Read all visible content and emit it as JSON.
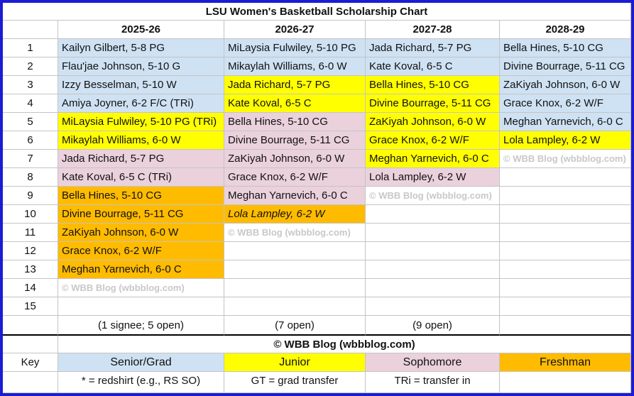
{
  "title": "LSU Women's Basketball Scholarship Chart",
  "table": {
    "columns": [
      "2025-26",
      "2026-27",
      "2027-28",
      "2028-29"
    ],
    "rows": [
      {
        "number": 1,
        "cells": [
          {
            "text": "Kailyn Gilbert, 5-8 PG",
            "color": "#cfe2f3"
          },
          {
            "text": "MiLaysia Fulwiley, 5-10 PG",
            "color": "#cfe2f3"
          },
          {
            "text": "Jada Richard, 5-7 PG",
            "color": "#cfe2f3"
          },
          {
            "text": "Bella Hines, 5-10 CG",
            "color": "#cfe2f3"
          }
        ]
      },
      {
        "number": 2,
        "cells": [
          {
            "text": "Flau'jae Johnson, 5-10 G",
            "color": "#cfe2f3"
          },
          {
            "text": "Mikaylah Williams, 6-0 W",
            "color": "#cfe2f3"
          },
          {
            "text": "Kate Koval, 6-5 C",
            "color": "#cfe2f3"
          },
          {
            "text": "Divine Bourrage, 5-11 CG",
            "color": "#cfe2f3"
          }
        ]
      },
      {
        "number": 3,
        "cells": [
          {
            "text": "Izzy Besselman, 5-10 W",
            "color": "#cfe2f3"
          },
          {
            "text": "Jada Richard, 5-7 PG",
            "color": "#ffff00"
          },
          {
            "text": "Bella Hines, 5-10 CG",
            "color": "#ffff00"
          },
          {
            "text": "ZaKiyah Johnson, 6-0 W",
            "color": "#cfe2f3"
          }
        ]
      },
      {
        "number": 4,
        "cells": [
          {
            "text": "Amiya Joyner, 6-2 F/C (TRi)",
            "color": "#cfe2f3"
          },
          {
            "text": "Kate Koval, 6-5 C",
            "color": "#ffff00"
          },
          {
            "text": "Divine Bourrage, 5-11 CG",
            "color": "#ffff00"
          },
          {
            "text": "Grace Knox, 6-2 W/F",
            "color": "#cfe2f3"
          }
        ]
      },
      {
        "number": 5,
        "cells": [
          {
            "text": "MiLaysia Fulwiley, 5-10 PG (TRi)",
            "color": "#ffff00"
          },
          {
            "text": "Bella Hines, 5-10 CG",
            "color": "#ead1dc"
          },
          {
            "text": "ZaKiyah Johnson, 6-0 W",
            "color": "#ffff00"
          },
          {
            "text": "Meghan Yarnevich, 6-0 C",
            "color": "#cfe2f3"
          }
        ]
      },
      {
        "number": 6,
        "cells": [
          {
            "text": "Mikaylah Williams, 6-0 W",
            "color": "#ffff00"
          },
          {
            "text": "Divine Bourrage, 5-11 CG",
            "color": "#ead1dc"
          },
          {
            "text": "Grace Knox, 6-2 W/F",
            "color": "#ffff00"
          },
          {
            "text": "Lola Lampley, 6-2 W",
            "color": "#ffff00"
          }
        ]
      },
      {
        "number": 7,
        "cells": [
          {
            "text": "Jada Richard, 5-7 PG",
            "color": "#ead1dc"
          },
          {
            "text": "ZaKiyah Johnson, 6-0 W",
            "color": "#ead1dc"
          },
          {
            "text": "Meghan Yarnevich, 6-0 C",
            "color": "#ffff00"
          },
          {
            "text": "© WBB Blog (wbbblog.com)",
            "watermark": true
          }
        ]
      },
      {
        "number": 8,
        "cells": [
          {
            "text": "Kate Koval, 6-5 C (TRi)",
            "color": "#ead1dc"
          },
          {
            "text": "Grace Knox, 6-2 W/F",
            "color": "#ead1dc"
          },
          {
            "text": "Lola Lampley, 6-2 W",
            "color": "#ead1dc"
          },
          null
        ]
      },
      {
        "number": 9,
        "cells": [
          {
            "text": "Bella Hines, 5-10 CG",
            "color": "#ffbb00"
          },
          {
            "text": "Meghan Yarnevich, 6-0 C",
            "color": "#ead1dc"
          },
          {
            "text": "© WBB Blog (wbbblog.com)",
            "watermark": true
          },
          null
        ]
      },
      {
        "number": 10,
        "cells": [
          {
            "text": "Divine Bourrage, 5-11 CG",
            "color": "#ffbb00"
          },
          {
            "text": "Lola Lampley, 6-2 W",
            "color": "#ffbb00",
            "italic": true
          },
          null,
          null
        ]
      },
      {
        "number": 11,
        "cells": [
          {
            "text": "ZaKiyah Johnson, 6-0 W",
            "color": "#ffbb00"
          },
          {
            "text": "© WBB Blog (wbbblog.com)",
            "watermark": true
          },
          null,
          null
        ]
      },
      {
        "number": 12,
        "cells": [
          {
            "text": "Grace Knox, 6-2 W/F",
            "color": "#ffbb00"
          },
          null,
          null,
          null
        ]
      },
      {
        "number": 13,
        "cells": [
          {
            "text": "Meghan Yarnevich, 6-0 C",
            "color": "#ffbb00"
          },
          null,
          null,
          null
        ]
      },
      {
        "number": 14,
        "cells": [
          {
            "text": "© WBB Blog (wbbblog.com)",
            "watermark": true
          },
          null,
          null,
          null
        ]
      },
      {
        "number": 15,
        "cells": [
          null,
          null,
          null,
          null
        ]
      }
    ],
    "notes": [
      null,
      "(1 signee; 5 open)",
      "(7 open)",
      "(9 open)"
    ]
  },
  "copyright": "© WBB Blog (wbbblog.com)",
  "key": {
    "label": "Key",
    "items": [
      {
        "text": "Senior/Grad",
        "color": "#cfe2f3"
      },
      {
        "text": "Junior",
        "color": "#ffff00"
      },
      {
        "text": "Sophomore",
        "color": "#ead1dc"
      },
      {
        "text": "Freshman",
        "color": "#ffbb00"
      }
    ]
  },
  "footnotes": [
    "* = redshirt (e.g., RS SO)",
    "GT = grad transfer",
    "TRi = transfer in"
  ]
}
